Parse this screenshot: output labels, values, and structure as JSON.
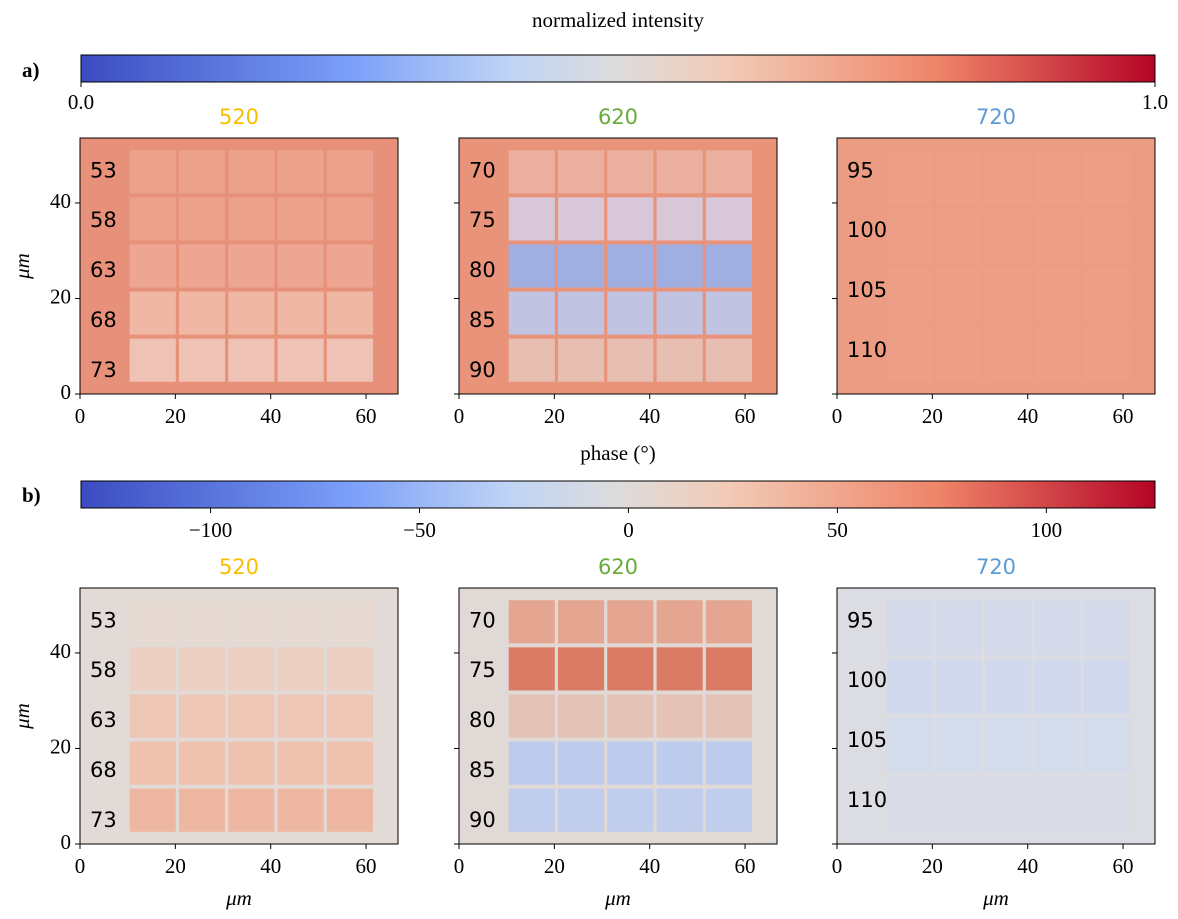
{
  "panels": [
    {
      "label": "a)",
      "colorbar": {
        "title": "normalized intensity",
        "lim": [
          0,
          1
        ],
        "ticks": [
          {
            "value": 0,
            "label": "0.0"
          },
          {
            "value": 1,
            "label": "1.0"
          }
        ]
      },
      "ylabel": "μm",
      "subplots": [
        {
          "title": "520",
          "color": "#f9be00",
          "labels": [
            "53",
            "58",
            "63",
            "68",
            "73"
          ]
        },
        {
          "title": "620",
          "color": "#6aaa3a",
          "labels": [
            "70",
            "75",
            "80",
            "85",
            "90"
          ]
        },
        {
          "title": "720",
          "color": "#5b9bd5",
          "labels": [
            "95",
            "100",
            "105",
            "110"
          ]
        }
      ]
    },
    {
      "label": "b)",
      "colorbar": {
        "title": "phase (°)",
        "lim": [
          -131,
          126
        ],
        "ticks": [
          {
            "value": -100,
            "label": "−100"
          },
          {
            "value": -50,
            "label": "−50"
          },
          0,
          50,
          100
        ]
      },
      "ylabel": "μm",
      "xlabel": "μm",
      "subplots": [
        {
          "title": "520",
          "color": "#f9be00",
          "labels": [
            "53",
            "58",
            "63",
            "68",
            "73"
          ]
        },
        {
          "title": "620",
          "color": "#6aaa3a",
          "labels": [
            "70",
            "75",
            "80",
            "85",
            "90"
          ]
        },
        {
          "title": "720",
          "color": "#5b9bd5",
          "labels": [
            "95",
            "100",
            "105",
            "110"
          ]
        }
      ]
    }
  ],
  "xlim": [
    0,
    66.7
  ],
  "ylim": [
    0,
    53.6
  ],
  "xticks": [
    0,
    20,
    40,
    60
  ],
  "yticks": [
    0,
    20,
    40
  ]
}
